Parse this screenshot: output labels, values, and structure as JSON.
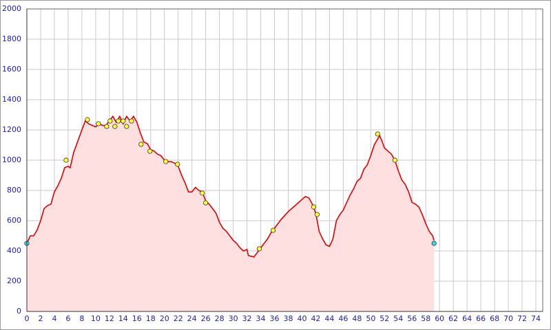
{
  "chart_data": {
    "type": "area",
    "xlim": [
      0,
      75
    ],
    "ylim": [
      0,
      2000
    ],
    "xticks": [
      0,
      2,
      4,
      6,
      8,
      10,
      12,
      14,
      16,
      18,
      20,
      22,
      24,
      26,
      28,
      30,
      32,
      34,
      36,
      38,
      40,
      42,
      44,
      46,
      48,
      50,
      52,
      54,
      56,
      58,
      60,
      62,
      64,
      66,
      68,
      70,
      72,
      74
    ],
    "yticks": [
      0,
      200,
      400,
      600,
      800,
      1000,
      1200,
      1400,
      1600,
      1800,
      2000
    ],
    "grid": true,
    "profile": {
      "color": "#e00000",
      "fill": "#ffe0e0",
      "x": [
        0,
        0.5,
        1,
        1.5,
        2,
        2.5,
        3,
        3.5,
        4,
        4.5,
        5,
        5.5,
        6,
        6.3,
        6.8,
        7.2,
        7.6,
        8,
        8.5,
        9,
        9.5,
        10,
        10.5,
        11,
        11.5,
        12,
        12.5,
        13,
        13.5,
        14,
        14.5,
        15,
        15.5,
        16,
        16.5,
        17,
        17.5,
        18,
        18.5,
        19,
        19.5,
        20,
        20.5,
        21,
        21.5,
        22,
        22.5,
        23,
        23.5,
        24,
        24.5,
        25,
        25.5,
        26,
        26.5,
        27,
        27.5,
        28,
        28.5,
        29,
        29.5,
        30,
        30.5,
        31,
        31.5,
        32,
        32.2,
        33,
        33.5,
        34,
        35,
        35.5,
        36,
        37,
        38,
        39,
        40,
        40.5,
        41,
        41.5,
        42,
        42.5,
        43,
        43.5,
        44,
        44.5,
        45,
        45.5,
        46,
        46.5,
        47,
        47.5,
        48,
        48.5,
        49,
        49.5,
        50,
        50.5,
        51,
        51.3,
        51.6,
        52,
        52.5,
        53,
        53.5,
        54,
        54.5,
        55,
        55.5,
        56,
        56.5,
        57,
        57.5,
        58,
        58.5,
        59,
        59.2
      ],
      "values": [
        450,
        500,
        500,
        540,
        600,
        680,
        700,
        710,
        790,
        830,
        880,
        950,
        960,
        950,
        1050,
        1100,
        1150,
        1200,
        1260,
        1240,
        1230,
        1220,
        1240,
        1230,
        1230,
        1260,
        1290,
        1250,
        1290,
        1240,
        1290,
        1260,
        1290,
        1250,
        1180,
        1120,
        1110,
        1070,
        1060,
        1040,
        1030,
        1000,
        990,
        990,
        980,
        960,
        900,
        850,
        790,
        790,
        820,
        800,
        790,
        730,
        710,
        680,
        650,
        590,
        550,
        530,
        500,
        470,
        450,
        420,
        400,
        410,
        370,
        360,
        390,
        420,
        480,
        520,
        550,
        610,
        660,
        700,
        740,
        760,
        750,
        710,
        650,
        530,
        480,
        440,
        430,
        480,
        600,
        640,
        670,
        720,
        770,
        810,
        860,
        880,
        940,
        970,
        1030,
        1100,
        1140,
        1160,
        1130,
        1080,
        1060,
        1040,
        1000,
        930,
        870,
        840,
        790,
        720,
        710,
        690,
        640,
        580,
        530,
        500,
        470
      ]
    },
    "waypoints": {
      "color": "#ffff33",
      "x": [
        5.7,
        8.8,
        10.4,
        11.6,
        12.1,
        12.8,
        13.3,
        14.0,
        14.5,
        15.2,
        16.6,
        17.9,
        20.2,
        21.9,
        25.5,
        26.0,
        33.8,
        35.8,
        41.7,
        42.2,
        51.0,
        53.5
      ],
      "values": [
        1000,
        1268,
        1241,
        1223,
        1259,
        1223,
        1259,
        1259,
        1223,
        1259,
        1105,
        1059,
        991,
        973,
        782,
        718,
        414,
        536,
        691,
        641,
        1173,
        1000
      ]
    },
    "endpoints": {
      "color": "#33ddee",
      "x": [
        0,
        59.2
      ],
      "values": [
        450,
        450
      ]
    }
  }
}
